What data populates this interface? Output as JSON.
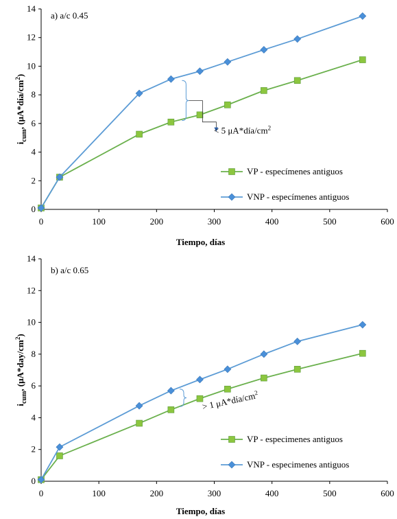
{
  "colors": {
    "vp": "#6ab04c",
    "vp_marker": "#8cc63f",
    "vnp": "#5b9bd5",
    "vnp_marker": "#4a90d9",
    "bracket": "#5b9bd5",
    "axis": "#000000"
  },
  "chart_data": [
    {
      "type": "line",
      "panel_label": "a)  a/c 0.45",
      "xlabel": "Tiempo, días",
      "ylabel_main": "i",
      "ylabel_sub": "cum",
      "ylabel_rest": ", (μA*día/cm",
      "ylabel_sup": "2",
      "ylabel_end": ")",
      "xlim": [
        0,
        600
      ],
      "ylim": [
        0,
        14
      ],
      "xticks": [
        0,
        100,
        200,
        300,
        400,
        500,
        600
      ],
      "yticks": [
        0,
        2,
        4,
        6,
        8,
        10,
        12,
        14
      ],
      "grid": false,
      "legend_position": "right-middle",
      "annotation": {
        "text": "< 5 μA*día/cm",
        "sup": "2",
        "x": 244,
        "y_top": 9.0,
        "y_bottom": 6.2
      },
      "series": [
        {
          "name": "VP - especímenes antiguos",
          "marker": "square",
          "x": [
            0,
            32,
            170,
            225,
            275,
            323,
            386,
            444,
            557
          ],
          "y": [
            0.1,
            2.25,
            5.25,
            6.1,
            6.6,
            7.3,
            8.3,
            9.0,
            10.45
          ]
        },
        {
          "name": "VNP - especímenes antiguos",
          "marker": "diamond",
          "x": [
            0,
            32,
            170,
            225,
            275,
            323,
            386,
            444,
            557
          ],
          "y": [
            0.1,
            2.25,
            8.1,
            9.1,
            9.65,
            10.3,
            11.15,
            11.9,
            13.5
          ]
        }
      ]
    },
    {
      "type": "line",
      "panel_label": "b)  a/c 0.65",
      "xlabel": "Tiempo, días",
      "ylabel_main": "i",
      "ylabel_sub": "cum",
      "ylabel_rest": ", (μA*day/cm",
      "ylabel_sup": "2",
      "ylabel_end": ")",
      "xlim": [
        0,
        600
      ],
      "ylim": [
        0,
        14
      ],
      "xticks": [
        0,
        100,
        200,
        300,
        400,
        500,
        600
      ],
      "yticks": [
        0,
        2,
        4,
        6,
        8,
        10,
        12,
        14
      ],
      "grid": false,
      "legend_position": "right-bottom",
      "annotation": {
        "text": "> 1 μA*día/cm",
        "sup": "2",
        "x": 240,
        "y_top": 5.8,
        "y_bottom": 4.7
      },
      "series": [
        {
          "name": "VP - especimenes antiguos",
          "marker": "square",
          "x": [
            0,
            32,
            170,
            225,
            275,
            323,
            386,
            444,
            557
          ],
          "y": [
            0.1,
            1.6,
            3.65,
            4.5,
            5.2,
            5.8,
            6.5,
            7.05,
            8.05
          ]
        },
        {
          "name": "VNP - especimenes antiguos",
          "marker": "diamond",
          "x": [
            0,
            32,
            170,
            225,
            275,
            323,
            386,
            444,
            557
          ],
          "y": [
            0.1,
            2.15,
            4.75,
            5.7,
            6.4,
            7.05,
            8.0,
            8.8,
            9.85
          ]
        }
      ]
    }
  ]
}
